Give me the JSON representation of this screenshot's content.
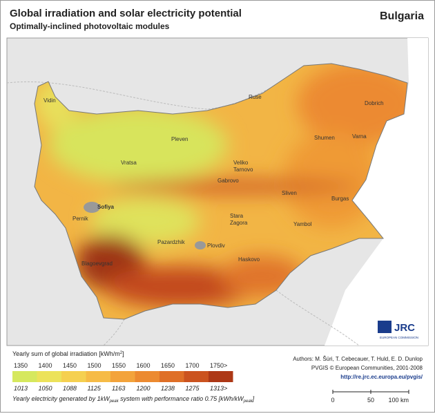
{
  "header": {
    "title": "Global irradiation and solar electricity potential",
    "subtitle": "Optimally-inclined photovoltaic modules",
    "country": "Bulgaria"
  },
  "map": {
    "cities": [
      [
        "Vidin"
      ],
      [
        "Ruse"
      ],
      [
        "Dobrich"
      ],
      [
        "Pleven"
      ],
      [
        "Shumen"
      ],
      [
        "Varna"
      ],
      [
        "Vratsa"
      ],
      [
        "Veliko",
        "Tarnovo"
      ],
      [
        "Gabrovo"
      ],
      [
        "Sliven"
      ],
      [
        "Sofiya"
      ],
      [
        "Burgas"
      ],
      [
        "Yambol"
      ],
      [
        "Pernik"
      ],
      [
        "Stara",
        "Zagora"
      ],
      [
        "Pazardzhik"
      ],
      [
        "Plovdiv"
      ],
      [
        "Haskovo"
      ],
      [
        "Blagoevgrad"
      ]
    ],
    "logo": {
      "name": "JRC",
      "org": "EUROPEAN COMMISSION"
    }
  },
  "legend": {
    "title": [
      "Yearly sum of global irradiation [kWh/m",
      "2",
      "]"
    ],
    "irradiation_labels": [
      "1350",
      "1400",
      "1450",
      "1500",
      "1550",
      "1600",
      "1650",
      "1700",
      "1750>"
    ],
    "electricity_labels": [
      "1013",
      "1050",
      "1088",
      "1125",
      "1163",
      "1200",
      "1238",
      "1275",
      "1313>"
    ],
    "colors": [
      "#d6e85e",
      "#ece25a",
      "#f5d050",
      "#f6bb46",
      "#f3a33b",
      "#ec8a30",
      "#df6f27",
      "#cb531f",
      "#ad3816"
    ],
    "note": [
      "Yearly electricity generated by 1kW",
      "peak",
      " system with performance ratio 0.75 [kWh/kW",
      "peak",
      "]"
    ]
  },
  "credits": {
    "authors": "Authors: M. Šúri, T. Cebecauer, T. Huld, E. D. Dunlop",
    "copyright": "PVGIS © European Communities, 2001-2008",
    "url": "http://re.jrc.ec.europa.eu/pvgis/"
  },
  "scale": {
    "labels": [
      "0",
      "50",
      "100 km"
    ]
  }
}
